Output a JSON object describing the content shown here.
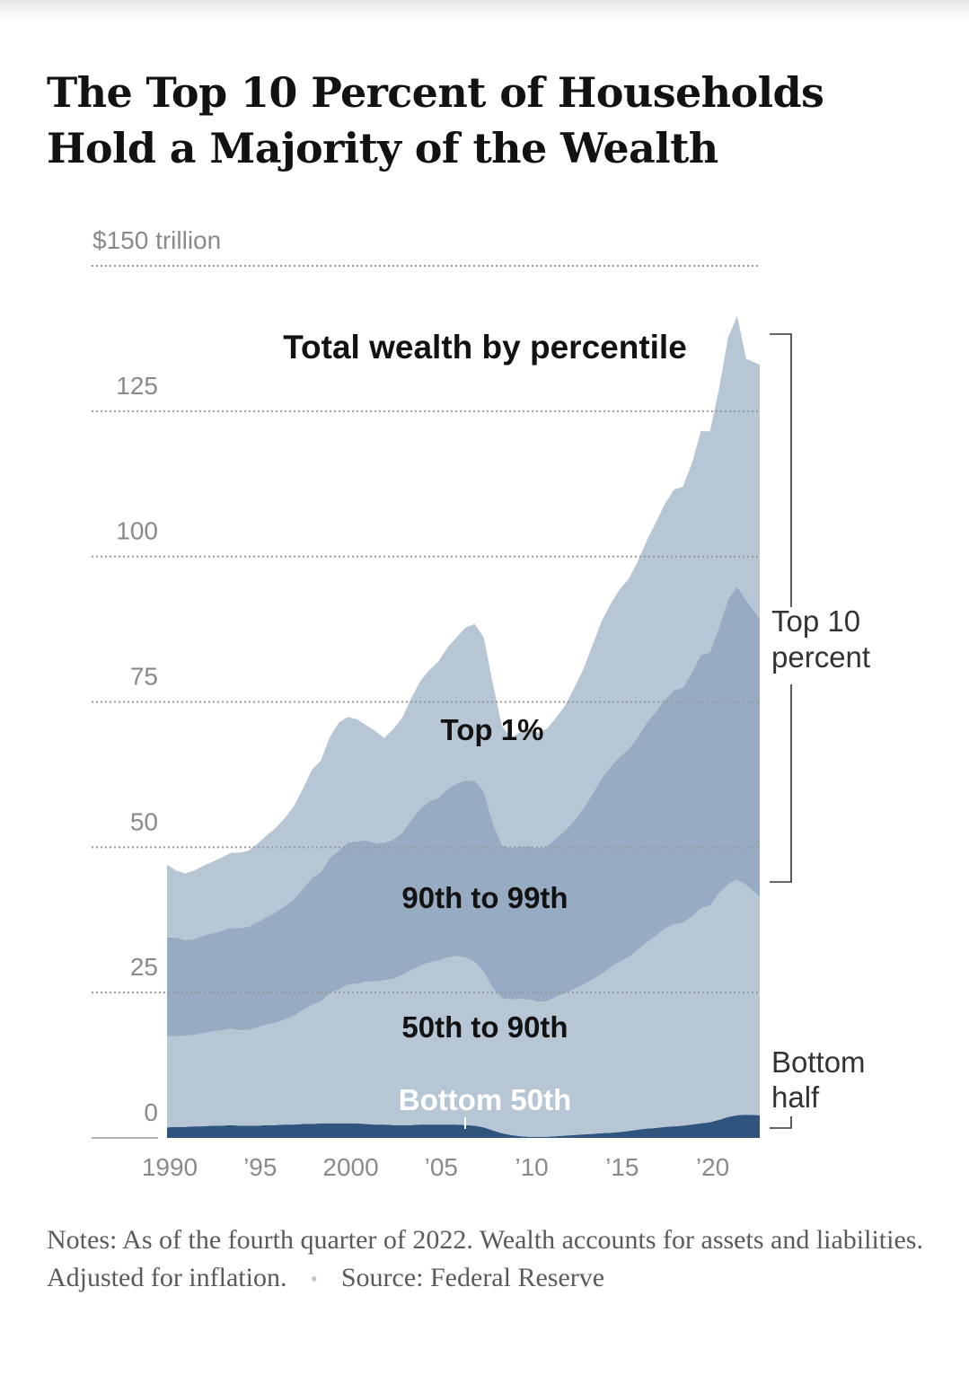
{
  "title": "The Top 10 Percent of Households Hold a Majority of the Wealth",
  "notes": "Notes: As of the fourth quarter of 2022. Wealth accounts for assets and liabilities. Adjusted for inflation.",
  "source": "Source: Federal Reserve",
  "colors": {
    "bottom50": "#2f557f",
    "p50_90": "#b7c6d5",
    "p90_99": "#97abc2",
    "top1": "#b7c6d5",
    "gridline": "#999999",
    "axis_text": "#8a8a8a",
    "label_text": "#121212",
    "label_white": "#ffffff"
  },
  "chart_data": {
    "type": "area",
    "stacked": true,
    "title": "Total wealth by percentile",
    "y_unit": "$ trillion",
    "ylim": [
      0,
      150
    ],
    "y_ticks": [
      0,
      25,
      50,
      75,
      100,
      125,
      150
    ],
    "y_tick_labels": [
      "0",
      "25",
      "50",
      "75",
      "100",
      "125",
      "$150 trillion"
    ],
    "x_ticks": [
      1990,
      1995,
      2000,
      2005,
      2010,
      2015,
      2020
    ],
    "x_tick_labels": [
      "1990",
      "’95",
      "2000",
      "’05",
      "’10",
      "’15",
      "’20"
    ],
    "grid": true,
    "x": [
      1990.0,
      1990.5,
      1991.0,
      1991.5,
      1992.0,
      1992.5,
      1993.0,
      1993.5,
      1994.0,
      1994.5,
      1995.0,
      1995.5,
      1996.0,
      1996.5,
      1997.0,
      1997.5,
      1998.0,
      1998.5,
      1999.0,
      1999.5,
      2000.0,
      2000.5,
      2001.0,
      2001.5,
      2002.0,
      2002.5,
      2003.0,
      2003.5,
      2004.0,
      2004.5,
      2005.0,
      2005.5,
      2006.0,
      2006.5,
      2007.0,
      2007.5,
      2008.0,
      2008.5,
      2009.0,
      2009.5,
      2010.0,
      2010.5,
      2011.0,
      2011.5,
      2012.0,
      2012.5,
      2013.0,
      2013.5,
      2014.0,
      2014.5,
      2015.0,
      2015.5,
      2016.0,
      2016.5,
      2017.0,
      2017.5,
      2018.0,
      2018.5,
      2019.0,
      2019.5,
      2020.0,
      2020.5,
      2021.0,
      2021.5,
      2022.0,
      2022.75
    ],
    "series": [
      {
        "name": "Bottom 50th",
        "values": [
          1.8,
          1.9,
          1.9,
          2.0,
          2.0,
          2.1,
          2.1,
          2.2,
          2.1,
          2.1,
          2.1,
          2.2,
          2.2,
          2.3,
          2.3,
          2.4,
          2.4,
          2.5,
          2.5,
          2.5,
          2.5,
          2.5,
          2.4,
          2.3,
          2.3,
          2.2,
          2.2,
          2.2,
          2.3,
          2.3,
          2.3,
          2.3,
          2.3,
          2.2,
          2.1,
          1.8,
          1.3,
          0.8,
          0.5,
          0.3,
          0.2,
          0.2,
          0.2,
          0.3,
          0.4,
          0.5,
          0.6,
          0.7,
          0.8,
          0.9,
          1.0,
          1.2,
          1.4,
          1.6,
          1.7,
          1.9,
          2.0,
          2.1,
          2.3,
          2.5,
          2.7,
          3.1,
          3.6,
          3.9,
          4.0,
          3.9
        ]
      },
      {
        "name": "50th to 90th",
        "values": [
          15.7,
          15.6,
          15.7,
          15.7,
          16.0,
          16.2,
          16.4,
          16.6,
          16.4,
          16.5,
          16.9,
          17.3,
          17.6,
          18.0,
          18.7,
          19.6,
          20.5,
          21.0,
          22.4,
          23.0,
          23.9,
          24.0,
          24.5,
          24.6,
          24.8,
          25.2,
          25.8,
          26.7,
          27.3,
          27.9,
          28.2,
          28.7,
          29.0,
          28.8,
          28.2,
          26.8,
          24.5,
          23.2,
          23.3,
          23.6,
          23.6,
          23.2,
          23.3,
          24.0,
          24.5,
          25.1,
          25.8,
          26.5,
          27.4,
          28.4,
          29.3,
          29.9,
          30.9,
          32.0,
          33.0,
          34.1,
          34.7,
          34.9,
          35.8,
          37.0,
          37.3,
          39.0,
          40.0,
          40.5,
          39.5,
          37.6
        ]
      },
      {
        "name": "90th to 99th",
        "values": [
          17.0,
          17.0,
          16.4,
          16.5,
          16.8,
          16.9,
          17.1,
          17.3,
          17.6,
          17.7,
          18.1,
          18.5,
          19.0,
          19.5,
          20.0,
          20.8,
          21.8,
          22.2,
          23.3,
          24.0,
          24.4,
          24.5,
          24.3,
          23.8,
          23.7,
          23.9,
          24.5,
          25.8,
          27.0,
          27.7,
          28.0,
          29.0,
          29.6,
          30.5,
          31.1,
          31.0,
          28.4,
          26.4,
          26.0,
          26.2,
          26.4,
          26.4,
          26.7,
          27.3,
          28.0,
          29.0,
          30.2,
          31.9,
          33.6,
          34.5,
          35.2,
          35.7,
          36.6,
          37.8,
          38.6,
          39.4,
          40.3,
          40.4,
          41.9,
          43.6,
          43.5,
          45.8,
          49.0,
          50.5,
          49.0,
          47.8
        ]
      },
      {
        "name": "Top 1%",
        "values": [
          12.5,
          11.5,
          11.5,
          11.8,
          12.0,
          12.3,
          12.6,
          12.9,
          13.0,
          13.1,
          13.5,
          14.0,
          14.5,
          15.2,
          16.0,
          17.2,
          18.6,
          19.2,
          20.8,
          22.0,
          21.6,
          21.0,
          19.8,
          19.3,
          18.0,
          19.0,
          19.8,
          21.0,
          22.0,
          22.6,
          23.5,
          24.4,
          25.2,
          26.3,
          27.0,
          26.5,
          24.0,
          20.5,
          19.0,
          19.7,
          20.2,
          19.9,
          20.2,
          20.7,
          21.5,
          22.8,
          24.0,
          25.6,
          27.0,
          28.0,
          28.8,
          29.3,
          30.2,
          31.3,
          32.5,
          33.6,
          34.5,
          34.6,
          36.0,
          38.5,
          38.0,
          41.0,
          45.0,
          46.5,
          41.5,
          43.7
        ]
      }
    ],
    "annotations": {
      "top10_bracket": "Top 10 percent",
      "bottom_bracket": "Bottom half"
    }
  }
}
